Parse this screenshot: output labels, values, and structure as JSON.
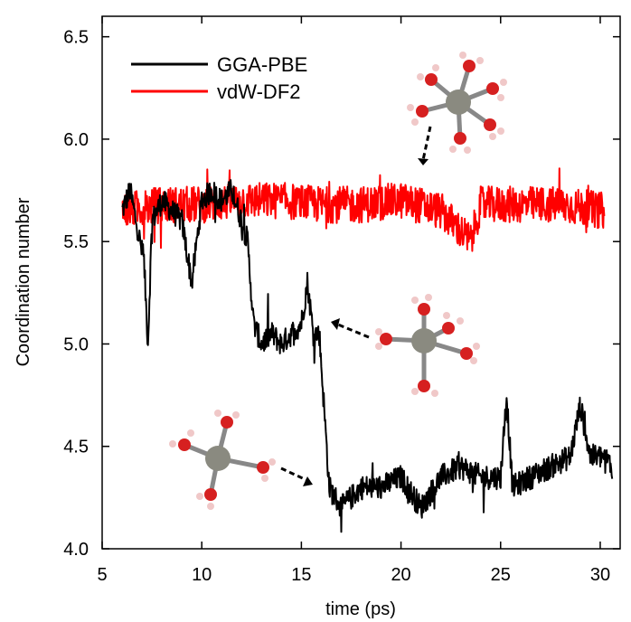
{
  "chart_data": {
    "type": "line",
    "xlabel": "time (ps)",
    "ylabel": "Coordination number",
    "xlim": [
      5,
      31
    ],
    "ylim": [
      4.0,
      6.6
    ],
    "x_ticks": [
      "5",
      "10",
      "15",
      "20",
      "25",
      "30"
    ],
    "y_ticks": [
      "4.0",
      "4.5",
      "5.0",
      "5.5",
      "6.0",
      "6.5"
    ],
    "legend_position": "top-left",
    "series": [
      {
        "name": "GGA-PBE",
        "color": "#000000",
        "points": [
          [
            6.0,
            5.65
          ],
          [
            6.4,
            5.75
          ],
          [
            6.8,
            5.55
          ],
          [
            7.1,
            5.4
          ],
          [
            7.3,
            5.0
          ],
          [
            7.5,
            5.6
          ],
          [
            8.0,
            5.7
          ],
          [
            8.5,
            5.65
          ],
          [
            9.0,
            5.6
          ],
          [
            9.5,
            5.3
          ],
          [
            10.0,
            5.7
          ],
          [
            10.5,
            5.75
          ],
          [
            11.0,
            5.7
          ],
          [
            11.5,
            5.75
          ],
          [
            12.0,
            5.6
          ],
          [
            12.3,
            5.5
          ],
          [
            12.6,
            5.1
          ],
          [
            13.0,
            5.0
          ],
          [
            13.5,
            5.05
          ],
          [
            14.0,
            5.0
          ],
          [
            14.5,
            5.05
          ],
          [
            15.0,
            5.1
          ],
          [
            15.3,
            5.3
          ],
          [
            15.6,
            5.05
          ],
          [
            15.9,
            5.05
          ],
          [
            16.2,
            4.6
          ],
          [
            16.4,
            4.3
          ],
          [
            17.0,
            4.2
          ],
          [
            18.0,
            4.3
          ],
          [
            19.0,
            4.3
          ],
          [
            20.0,
            4.35
          ],
          [
            21.0,
            4.2
          ],
          [
            22.0,
            4.35
          ],
          [
            23.0,
            4.4
          ],
          [
            24.0,
            4.35
          ],
          [
            25.0,
            4.35
          ],
          [
            25.3,
            4.75
          ],
          [
            25.6,
            4.3
          ],
          [
            26.5,
            4.35
          ],
          [
            27.5,
            4.4
          ],
          [
            28.5,
            4.45
          ],
          [
            29.0,
            4.7
          ],
          [
            29.5,
            4.45
          ],
          [
            30.2,
            4.45
          ],
          [
            30.6,
            4.4
          ]
        ]
      },
      {
        "name": "vdW-DF2",
        "color": "#ff0000",
        "points": [
          [
            6.0,
            5.65
          ],
          [
            8.0,
            5.68
          ],
          [
            10.0,
            5.68
          ],
          [
            12.0,
            5.7
          ],
          [
            14.0,
            5.7
          ],
          [
            16.0,
            5.68
          ],
          [
            18.0,
            5.68
          ],
          [
            20.0,
            5.7
          ],
          [
            22.0,
            5.65
          ],
          [
            23.5,
            5.5
          ],
          [
            24.0,
            5.68
          ],
          [
            26.0,
            5.68
          ],
          [
            28.0,
            5.68
          ],
          [
            30.2,
            5.65
          ]
        ]
      }
    ]
  }
}
